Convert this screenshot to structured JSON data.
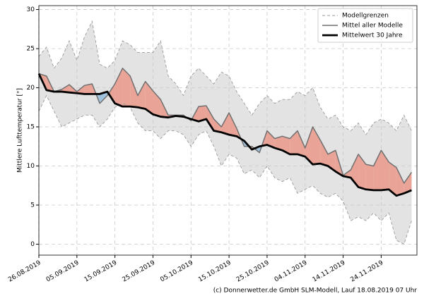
{
  "chart_data": {
    "type": "line",
    "ylabel": "Mittlere Lufttemperatur [°]",
    "footer": "(c) Donnerwetter.de GmbH SLM-Modell, Lauf 18.08.2019 07 Uhr",
    "x": [
      "26.08.2019",
      "28.08.2019",
      "30.08.2019",
      "01.09.2019",
      "03.09.2019",
      "05.09.2019",
      "07.09.2019",
      "09.09.2019",
      "11.09.2019",
      "13.09.2019",
      "15.09.2019",
      "17.09.2019",
      "19.09.2019",
      "21.09.2019",
      "23.09.2019",
      "25.09.2019",
      "27.09.2019",
      "29.09.2019",
      "01.10.2019",
      "03.10.2019",
      "05.10.2019",
      "07.10.2019",
      "09.10.2019",
      "11.10.2019",
      "13.10.2019",
      "15.10.2019",
      "17.10.2019",
      "19.10.2019",
      "21.10.2019",
      "23.10.2019",
      "25.10.2019",
      "27.10.2019",
      "29.10.2019",
      "31.10.2019",
      "02.11.2019",
      "04.11.2019",
      "06.11.2019",
      "08.11.2019",
      "10.11.2019",
      "12.11.2019",
      "14.11.2019",
      "16.11.2019",
      "18.11.2019",
      "20.11.2019",
      "22.11.2019",
      "24.11.2019",
      "26.11.2019",
      "28.11.2019",
      "30.11.2019",
      "02.12.2019"
    ],
    "xticks": [
      "26.08.2019",
      "05.09.2019",
      "15.09.2019",
      "25.09.2019",
      "05.10.2019",
      "15.10.2019",
      "25.10.2019",
      "04.11.2019",
      "14.11.2019",
      "24.11.2019"
    ],
    "band": {
      "name": "Modellgrenzen",
      "color": "#e3e3e3",
      "line_color": "#999999",
      "upper": [
        24,
        25.2,
        22.5,
        23.8,
        26,
        23.5,
        26.5,
        28.5,
        23,
        22.5,
        23.5,
        26,
        25.5,
        24.5,
        24.5,
        24.5,
        26,
        21.5,
        20.5,
        19,
        21.5,
        22.5,
        21.5,
        20.5,
        22,
        21.5,
        19.5,
        18,
        16.5,
        18,
        19,
        18,
        18.5,
        18.5,
        19.5,
        19,
        20,
        17.5,
        16,
        16.5,
        15,
        14.5,
        15.5,
        14,
        15.5,
        16,
        15.5,
        14.5,
        16.5,
        14.5
      ],
      "lower": [
        17,
        19,
        17,
        15,
        15.5,
        16,
        16.5,
        16.5,
        15,
        16,
        17.5,
        18,
        17.5,
        15.5,
        14.5,
        14.5,
        13.5,
        14.5,
        14.5,
        14,
        12.5,
        14,
        14.5,
        12.5,
        10,
        11.5,
        11,
        9,
        9.5,
        8.5,
        10,
        8.5,
        8,
        8.5,
        6.5,
        7,
        7.5,
        6.5,
        6,
        6.5,
        5.5,
        3,
        3.5,
        3,
        4,
        3,
        4,
        0.5,
        0,
        3
      ]
    },
    "series": [
      {
        "name": "Mittel aller Modelle",
        "color": "#707070",
        "values": [
          21.8,
          21.5,
          19.5,
          19.8,
          20.4,
          19.5,
          20.3,
          20.5,
          18,
          19,
          20.5,
          22.5,
          21.5,
          19,
          20.8,
          19.6,
          18.5,
          16.5,
          16.5,
          16.5,
          15.8,
          17.6,
          17.7,
          16,
          15,
          16.8,
          14.8,
          12.5,
          12.5,
          11.7,
          14.5,
          13.5,
          13.8,
          13.5,
          14.5,
          12.3,
          15,
          13.3,
          11.5,
          12,
          8.8,
          9.5,
          11.5,
          10.2,
          10,
          12,
          10.5,
          9.8,
          7.8,
          9.2
        ]
      },
      {
        "name": "Mittelwert 30 Jahre",
        "color": "#000000",
        "values": [
          21.8,
          19.7,
          19.5,
          19.5,
          19.4,
          19.3,
          19.2,
          19.2,
          19.2,
          19.5,
          18,
          17.6,
          17.6,
          17.5,
          17.3,
          16.6,
          16.3,
          16.2,
          16.4,
          16.3,
          16,
          15.7,
          16,
          14.5,
          14.3,
          14,
          13.8,
          13.2,
          12.1,
          12.5,
          12.7,
          12.3,
          12,
          11.5,
          11.5,
          11.2,
          10.2,
          10.3,
          10,
          9.3,
          8.7,
          8.5,
          7.3,
          7,
          6.9,
          6.9,
          7,
          6.2,
          6.5,
          6.9
        ]
      }
    ],
    "above_color": "#e9a497",
    "below_color": "#9fc3df",
    "ylim": [
      -1.4,
      30.5
    ],
    "yticks": [
      0,
      5,
      10,
      15,
      20,
      25,
      30
    ],
    "grid": true,
    "legend": "upper right"
  }
}
